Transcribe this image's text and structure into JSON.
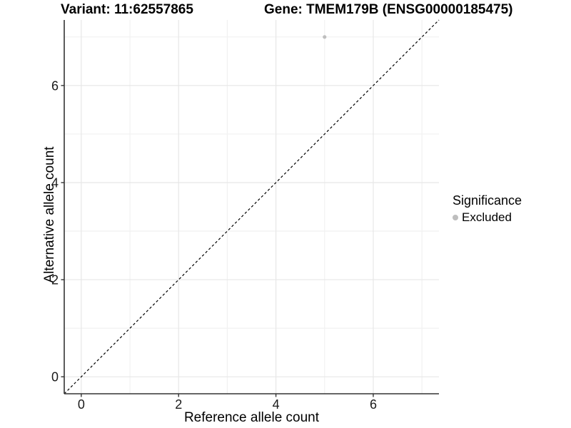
{
  "title": {
    "variant": "Variant: 11:62557865",
    "gene": "Gene: TMEM179B (ENSG00000185475)"
  },
  "chart_data": {
    "type": "scatter",
    "title": "Variant: 11:62557865   Gene: TMEM179B (ENSG00000185475)",
    "xlabel": "Reference allele count",
    "ylabel": "Alternative allele count",
    "xlim": [
      -0.35,
      7.35
    ],
    "ylim": [
      -0.35,
      7.35
    ],
    "xticks": [
      0,
      2,
      4,
      6
    ],
    "yticks": [
      0,
      2,
      4,
      6
    ],
    "x_minor_gridlines": [
      1,
      3,
      5,
      7
    ],
    "y_minor_gridlines": [
      1,
      3,
      5,
      7
    ],
    "grid": true,
    "series": [
      {
        "name": "Excluded",
        "color": "#bebebe",
        "points": [
          [
            5,
            7
          ]
        ]
      }
    ],
    "reference_line": {
      "type": "identity",
      "style": "dashed",
      "color": "#000000",
      "comment": "y = x diagonal"
    },
    "legend": {
      "position": "right",
      "title": "Significance",
      "entries": [
        {
          "label": "Excluded",
          "color": "#bebebe"
        }
      ]
    },
    "style": {
      "grid_major_color": "#e7e7e7",
      "grid_minor_color": "#f1f1f1",
      "axis_color": "#333333",
      "tick_label_color": "#1a1a1a"
    }
  }
}
